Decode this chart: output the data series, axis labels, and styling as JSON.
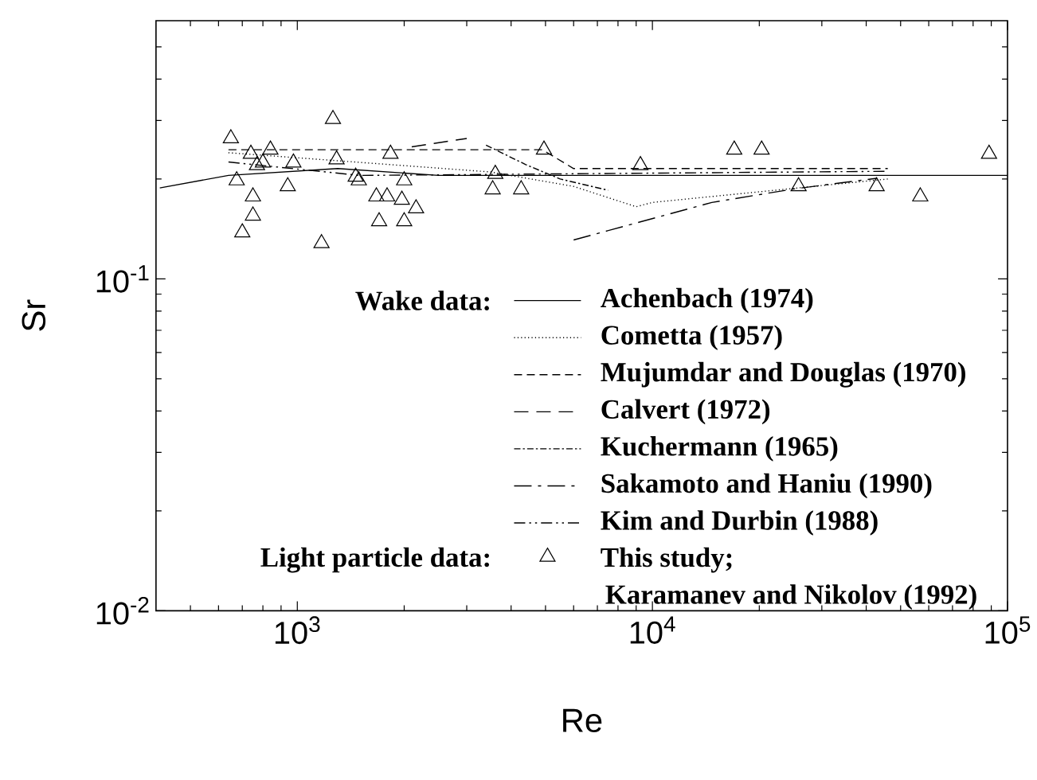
{
  "chart_data": {
    "type": "line",
    "xlabel": "Re",
    "ylabel": "Sr",
    "log": "xy",
    "xlim": [
      400,
      100000
    ],
    "ylim": [
      0.01,
      0.6
    ],
    "xticks": [
      {
        "value": 1000,
        "label": "10$^{3}$"
      },
      {
        "value": 10000,
        "label": "10$^{4}$"
      },
      {
        "value": 100000,
        "label": "10$^{5}$"
      }
    ],
    "yticks": [
      {
        "value": 0.01,
        "label": "10$^{-2}$"
      },
      {
        "value": 0.1,
        "label": "10$^{-1}$"
      }
    ],
    "legend": "bottom right",
    "grid": false,
    "annotations": [
      "Wake data:",
      "Light particle data:",
      "Karamanev and Nikolov (1992)"
    ],
    "series": [
      {
        "name": "Achenbach (1974)",
        "color": "#000000",
        "line_style": "solid",
        "x": [
          410,
          640,
          1300,
          2500,
          100000
        ],
        "values": [
          0.188,
          0.205,
          0.215,
          0.205,
          0.205
        ]
      },
      {
        "name": "Cometta (1957)",
        "color": "#000000",
        "line_style": "dotted",
        "x": [
          640,
          3500,
          6000,
          9000,
          10000,
          46000
        ],
        "values": [
          0.24,
          0.21,
          0.19,
          0.165,
          0.17,
          0.2
        ]
      },
      {
        "name": "Mujumdar and Douglas (1970)",
        "color": "#000000",
        "line_style": "dashed",
        "x": [
          640,
          4900,
          6000,
          46000
        ],
        "values": [
          0.245,
          0.245,
          0.215,
          0.215
        ]
      },
      {
        "name": "Calvert (1972)",
        "color": "#000000",
        "line_style": "long dashed",
        "x": [
          2100,
          3000
        ],
        "values": [
          0.25,
          0.265
        ]
      },
      {
        "name": "Kuchermann (1965)",
        "color": "#000000",
        "line_style": "dash dot",
        "x": [
          3400,
          4400,
          5500,
          7500
        ],
        "values": [
          0.253,
          0.221,
          0.2,
          0.185
        ]
      },
      {
        "name": "Sakamoto and Haniu (1990)",
        "color": "#000000",
        "line_style": "long dash dot",
        "x": [
          6000,
          14700,
          25300,
          42800
        ],
        "values": [
          0.131,
          0.17,
          0.187,
          0.201
        ]
      },
      {
        "name": "Kim and Durbin (1988)",
        "color": "#000000",
        "line_style": "dash dot dot",
        "x": [
          640,
          1500,
          46000
        ],
        "values": [
          0.225,
          0.205,
          0.211
        ]
      },
      {
        "name": "This study;",
        "type": "scatter",
        "color": "#000000",
        "marker": "triangle",
        "x": [
          650,
          740,
          840,
          975,
          770,
          800,
          675,
          940,
          750,
          750,
          700,
          1260,
          1290,
          1170,
          1460,
          1490,
          1670,
          1790,
          1970,
          2160,
          1830,
          2000,
          1700,
          2000,
          3610,
          3550,
          4270,
          4950,
          9250,
          17000,
          20300,
          25800,
          42800,
          56800,
          88700
        ],
        "values": [
          0.265,
          0.238,
          0.245,
          0.224,
          0.22,
          0.224,
          0.198,
          0.19,
          0.177,
          0.155,
          0.138,
          0.303,
          0.229,
          0.128,
          0.203,
          0.198,
          0.177,
          0.177,
          0.173,
          0.163,
          0.238,
          0.198,
          0.149,
          0.149,
          0.207,
          0.186,
          0.186,
          0.245,
          0.22,
          0.245,
          0.245,
          0.19,
          0.19,
          0.177,
          0.238
        ]
      }
    ]
  }
}
